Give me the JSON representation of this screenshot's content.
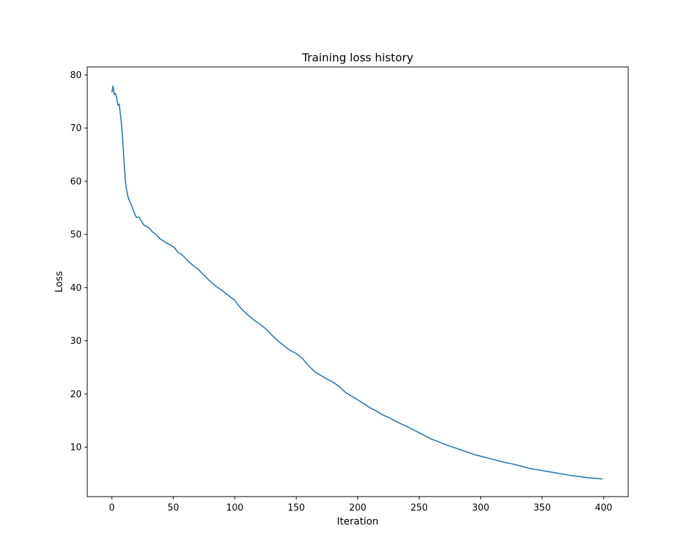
{
  "chart_data": {
    "type": "line",
    "title": "Training loss history",
    "xlabel": "Iteration",
    "ylabel": "Loss",
    "xlim": [
      -20,
      420
    ],
    "ylim": [
      0.7,
      81.5
    ],
    "xticks": [
      0,
      50,
      100,
      150,
      200,
      250,
      300,
      350,
      400
    ],
    "yticks": [
      10,
      20,
      30,
      40,
      50,
      60,
      70,
      80
    ],
    "grid": false,
    "legend": "none",
    "line_color": "#1f77b4",
    "series": [
      {
        "x": [
          0,
          1,
          2,
          3,
          4,
          5,
          6,
          7,
          8,
          9,
          10,
          11,
          12,
          13,
          14,
          15,
          16,
          18,
          20,
          22,
          24,
          26,
          28,
          30,
          33,
          36,
          39,
          42,
          45,
          48,
          51,
          54,
          57,
          60,
          63,
          66,
          70,
          75,
          80,
          85,
          90,
          95,
          100,
          105,
          110,
          115,
          120,
          125,
          130,
          135,
          140,
          145,
          150,
          155,
          160,
          165,
          170,
          175,
          180,
          185,
          190,
          195,
          200,
          205,
          210,
          215,
          220,
          225,
          230,
          235,
          240,
          245,
          250,
          255,
          260,
          265,
          270,
          275,
          280,
          285,
          290,
          295,
          300,
          305,
          310,
          315,
          320,
          325,
          330,
          335,
          340,
          345,
          350,
          355,
          360,
          365,
          370,
          375,
          380,
          385,
          390,
          395,
          399
        ],
        "y": [
          76.7,
          77.9,
          76.3,
          76.5,
          75.6,
          74.3,
          74.5,
          72.5,
          70.5,
          67.0,
          63.5,
          60.0,
          58.5,
          57.2,
          56.5,
          56.0,
          55.5,
          54.2,
          53.2,
          53.3,
          52.5,
          51.8,
          51.5,
          51.3,
          50.5,
          50.0,
          49.2,
          48.8,
          48.3,
          48.0,
          47.5,
          46.6,
          46.2,
          45.5,
          44.8,
          44.2,
          43.5,
          42.3,
          41.2,
          40.2,
          39.4,
          38.5,
          37.6,
          36.1,
          35.0,
          34.0,
          33.2,
          32.3,
          31.1,
          30.0,
          29.1,
          28.2,
          27.6,
          26.7,
          25.3,
          24.2,
          23.5,
          22.8,
          22.2,
          21.4,
          20.3,
          19.6,
          18.9,
          18.2,
          17.4,
          16.8,
          16.1,
          15.6,
          15.0,
          14.4,
          13.9,
          13.3,
          12.7,
          12.1,
          11.5,
          11.1,
          10.6,
          10.2,
          9.8,
          9.4,
          9.0,
          8.6,
          8.3,
          8.0,
          7.7,
          7.4,
          7.1,
          6.9,
          6.6,
          6.3,
          6.0,
          5.8,
          5.6,
          5.4,
          5.2,
          5.0,
          4.8,
          4.6,
          4.5,
          4.3,
          4.2,
          4.1,
          4.0
        ]
      }
    ]
  }
}
